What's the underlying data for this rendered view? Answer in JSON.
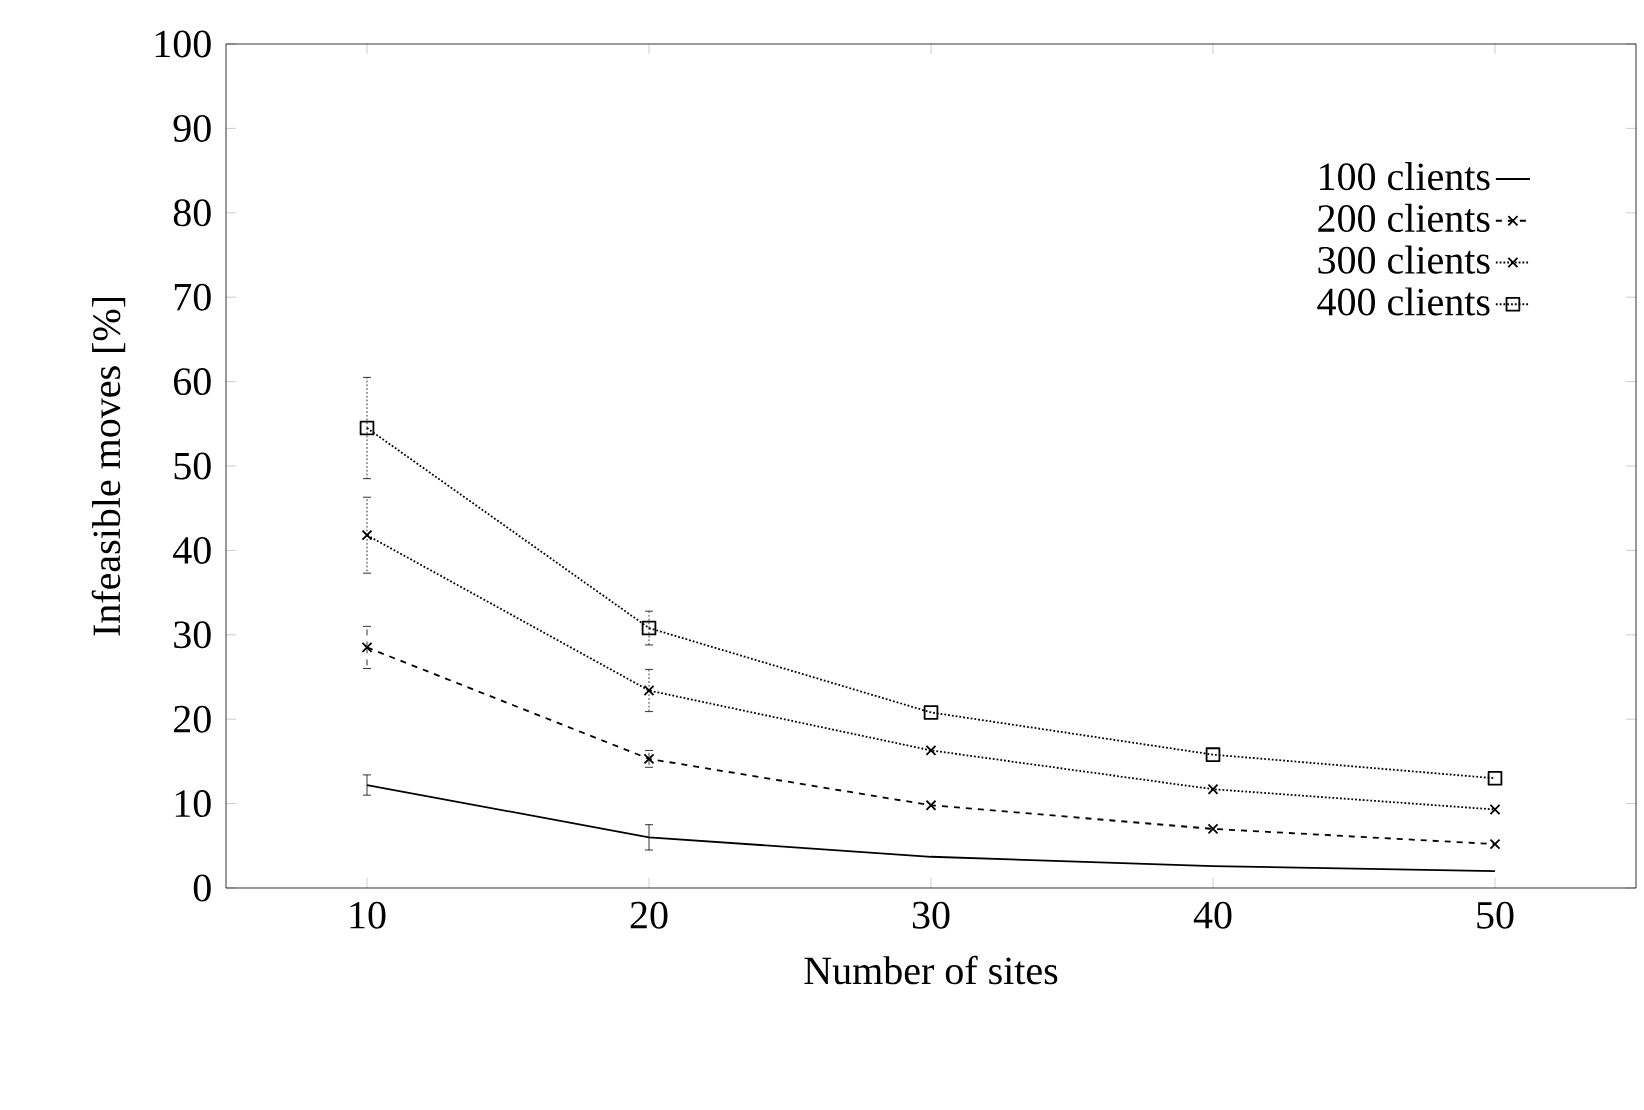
{
  "chart_data": {
    "type": "line",
    "xlabel": "Number of sites",
    "ylabel": "Infeasible moves [%]",
    "x": [
      10,
      20,
      30,
      40,
      50
    ],
    "series": [
      {
        "name": "100 clients",
        "color": "#000000",
        "marker": "none",
        "line_style": "solid",
        "values": [
          12.2,
          6.0,
          3.7,
          2.6,
          2.0
        ],
        "errors": [
          1.2,
          1.5,
          null,
          null,
          null
        ]
      },
      {
        "name": "200 clients",
        "color": "#000000",
        "marker": "cross",
        "line_style": "dashed",
        "values": [
          28.5,
          15.3,
          9.8,
          7.0,
          5.2
        ],
        "errors": [
          2.5,
          1.0,
          null,
          null,
          null
        ]
      },
      {
        "name": "300 clients",
        "color": "#000000",
        "marker": "cross",
        "line_style": "dotted",
        "values": [
          41.8,
          23.4,
          16.3,
          11.7,
          9.3
        ],
        "errors": [
          4.5,
          2.5,
          null,
          null,
          null
        ]
      },
      {
        "name": "400 clients",
        "color": "#000000",
        "marker": "square",
        "line_style": "dotted",
        "values": [
          54.5,
          30.8,
          20.8,
          15.8,
          13.0
        ],
        "errors": [
          6.0,
          2.0,
          null,
          null,
          null
        ]
      }
    ],
    "xlim": [
      5,
      55
    ],
    "ylim": [
      0,
      100
    ],
    "xticks": [
      10,
      20,
      30,
      40,
      50
    ],
    "yticks": [
      0,
      10,
      20,
      30,
      40,
      50,
      60,
      70,
      80,
      90,
      100
    ],
    "grid": false,
    "legend": "top right"
  }
}
